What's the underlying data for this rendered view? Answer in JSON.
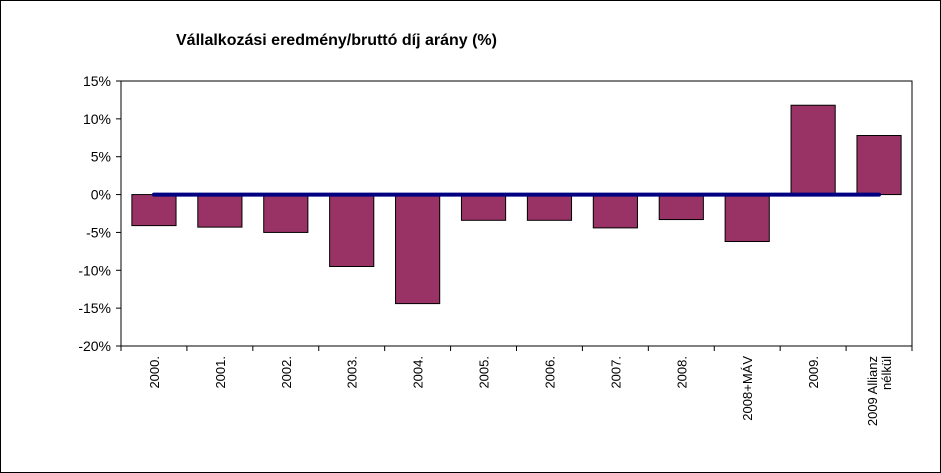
{
  "chart_data": {
    "type": "bar",
    "title": "Vállalkozási eredmény/bruttó díj arány (%)",
    "xlabel": "",
    "ylabel": "",
    "categories": [
      "2000.",
      "2001.",
      "2002.",
      "2003.",
      "2004.",
      "2005.",
      "2006.",
      "2007.",
      "2008.",
      "2008+MÁV",
      "2009.",
      "2009 Allianz nélkül"
    ],
    "category_lines": [
      [
        "2000."
      ],
      [
        "2001."
      ],
      [
        "2002."
      ],
      [
        "2003."
      ],
      [
        "2004."
      ],
      [
        "2005."
      ],
      [
        "2006."
      ],
      [
        "2007."
      ],
      [
        "2008."
      ],
      [
        "2008+MÁV"
      ],
      [
        "2009."
      ],
      [
        "2009 Allianz",
        "nélkül"
      ]
    ],
    "values": [
      -4.1,
      -4.3,
      -5.0,
      -9.5,
      -14.4,
      -3.4,
      -3.4,
      -4.4,
      -3.3,
      -6.2,
      11.8,
      7.8
    ],
    "reference_line": {
      "value": 0,
      "from_category": 0,
      "to_category": 11,
      "color": "#000080"
    },
    "ylim": [
      -20,
      15
    ],
    "yticks": [
      15,
      10,
      5,
      0,
      -5,
      -10,
      -15,
      -20
    ],
    "ytick_labels": [
      "15%",
      "10%",
      "5%",
      "0%",
      "-5%",
      "-10%",
      "-15%",
      "-20%"
    ],
    "bar_color": "#993366",
    "grid": false,
    "legend": "none"
  }
}
